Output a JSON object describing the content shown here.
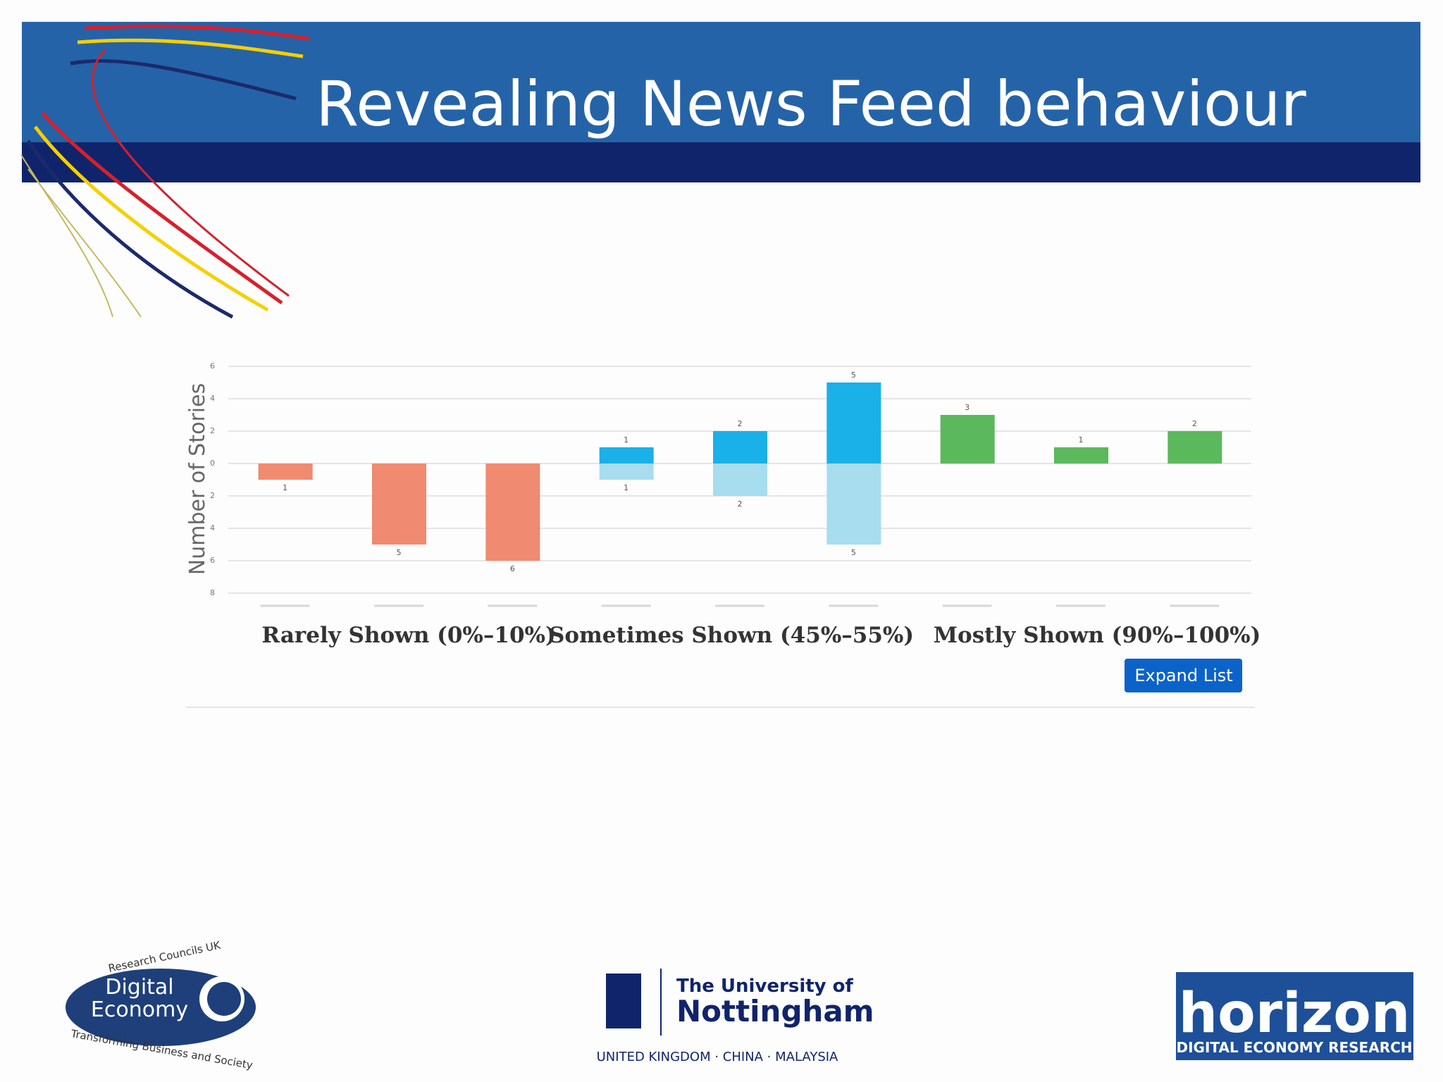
{
  "slide": {
    "title": "Revealing News Feed behaviour",
    "button": "Expand List",
    "logos": {
      "rcuk": "Research Councils UK",
      "de1": "Digital",
      "de2": "Economy",
      "de_tagline": "Transforming Business and Society",
      "uon1": "The University of",
      "uon2": "Nottingham",
      "uon3": "UNITED KINGDOM · CHINA · MALAYSIA",
      "hz1": "horizon",
      "hz2": "DIGITAL ECONOMY RESEARCH"
    }
  },
  "chart_data": {
    "type": "bar",
    "ylabel": "Number of Stories",
    "categories": [
      null,
      null,
      null,
      null,
      null,
      null,
      null,
      null,
      null
    ],
    "group_labels": [
      "Rarely Shown (0%–10%)",
      "Sometimes Shown (45%–55%)",
      "Mostly Shown (90%–100%)"
    ],
    "series": [
      {
        "color": "#f08a70",
        "values": [
          -1,
          -5,
          -6,
          null,
          null,
          null,
          null,
          null,
          null
        ],
        "value_labels": [
          "1",
          "5",
          "6",
          null,
          null,
          null,
          null,
          null,
          null
        ]
      },
      {
        "color": "#1ab0e8",
        "values": [
          null,
          null,
          null,
          1,
          2,
          5,
          null,
          null,
          null
        ]
      },
      {
        "color": "#a8dcef",
        "values": [
          null,
          null,
          null,
          -1,
          -2,
          -5,
          null,
          null,
          null
        ],
        "value_labels": [
          null,
          null,
          null,
          "1",
          "2",
          "5",
          null,
          null,
          null
        ]
      },
      {
        "color": "#5cb85c",
        "values": [
          null,
          null,
          null,
          null,
          null,
          null,
          3,
          1,
          2
        ]
      }
    ],
    "ylim": [
      -8,
      6
    ],
    "yticks": [
      6,
      4,
      2,
      0,
      {
        "value": -2,
        "label": "2"
      },
      {
        "value": -4,
        "label": "4"
      },
      {
        "value": -6,
        "label": "6"
      },
      {
        "value": -8,
        "label": "8"
      }
    ],
    "grid": true
  }
}
